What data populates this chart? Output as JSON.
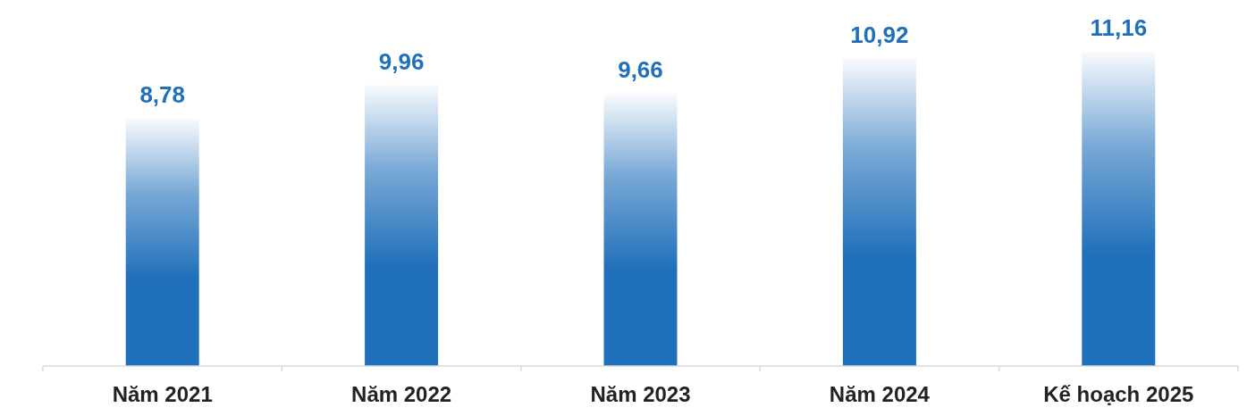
{
  "chart_data": {
    "type": "bar",
    "categories": [
      "Năm 2021",
      "Năm 2022",
      "Năm 2023",
      "Năm 2024",
      "Kế hoạch 2025"
    ],
    "values": [
      8.78,
      9.96,
      9.66,
      10.92,
      11.16
    ],
    "value_labels": [
      "8,78",
      "9,96",
      "9,66",
      "10,92",
      "11,16"
    ],
    "color": "#1f6fba"
  }
}
